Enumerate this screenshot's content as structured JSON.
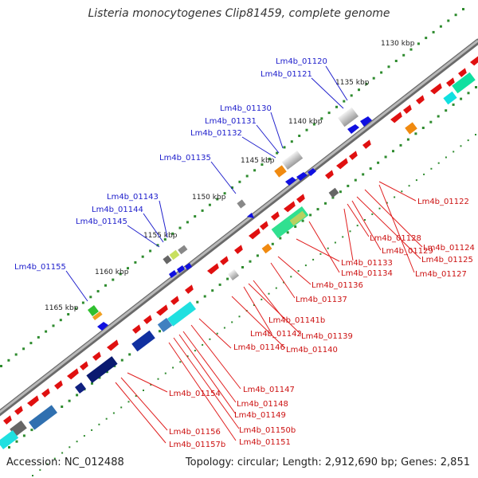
{
  "title": "Listeria monocytogenes Clip81459, complete genome",
  "footer": {
    "accession": "Accession: NC_012488",
    "topology": "Topology: circular; Length: 2,912,690 bp; Genes: 2,851"
  },
  "ruler_labels": [
    "1130 kbp",
    "1135 kbp",
    "1140 kbp",
    "1145 kbp",
    "1150 kbp",
    "1155 kbp",
    "1160 kbp",
    "1165 kbp"
  ],
  "gene_labels_blue": [
    "Lm4b_01120",
    "Lm4b_01121",
    "Lm4b_01130",
    "Lm4b_01131",
    "Lm4b_01132",
    "Lm4b_01135",
    "Lm4b_01143",
    "Lm4b_01144",
    "Lm4b_01145",
    "Lm4b_01155"
  ],
  "gene_labels_red": [
    "Lm4b_01122",
    "Lm4b_01124",
    "Lm4b_01125",
    "Lm4b_01127",
    "Lm4b_01128",
    "Lm4b_01129",
    "Lm4b_01133",
    "Lm4b_01134",
    "Lm4b_01136",
    "Lm4b_01137",
    "Lm4b_01141b",
    "Lm4b_01142",
    "Lm4b_01139",
    "Lm4b_01140",
    "Lm4b_01146",
    "Lm4b_01147",
    "Lm4b_01148",
    "Lm4b_01149",
    "Lm4b_01150b",
    "Lm4b_01151",
    "Lm4b_01154",
    "Lm4b_01156",
    "Lm4b_01157b"
  ],
  "colors": {
    "blue_label": "#2020cc",
    "red_label": "#cc1111",
    "backbone": "#8a8a8a",
    "ruler_dot": "#2a8a2a"
  }
}
